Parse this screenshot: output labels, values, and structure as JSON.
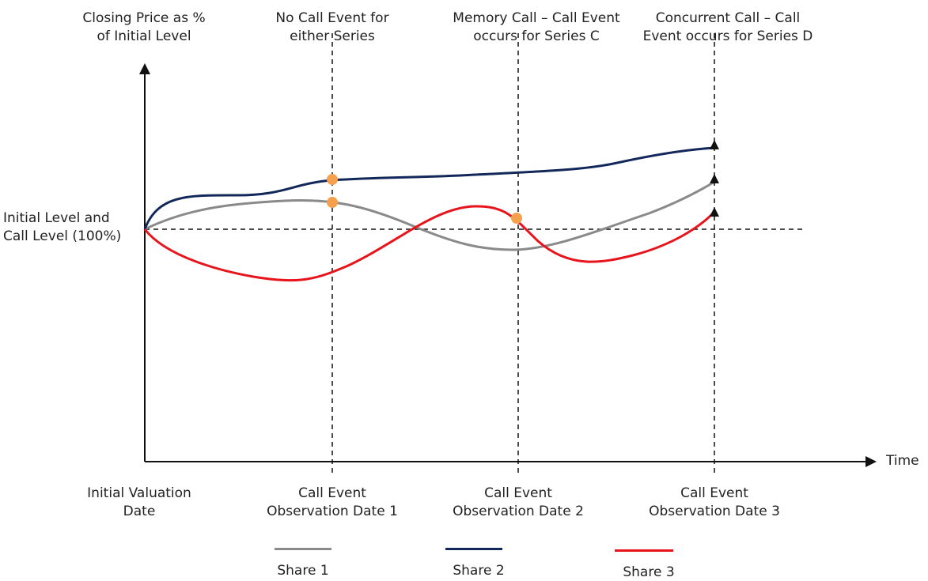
{
  "colors": {
    "share1": "#8a8a8a",
    "share2": "#13285a",
    "share3": "#e8141c",
    "observation_dot": "#f5a04d",
    "axis": "#111111"
  },
  "labels": {
    "y_axis_title": [
      "Closing Price as %",
      "of Initial Level"
    ],
    "call_level": [
      "Initial Level and",
      "Call Level (100%)"
    ],
    "time": "Time",
    "initial_date": [
      "Initial Valuation",
      "Date"
    ],
    "obs1": [
      "Call Event",
      "Observation Date 1"
    ],
    "obs2": [
      "Call Event",
      "Observation Date 2"
    ],
    "obs3": [
      "Call Event",
      "Observation Date 3"
    ],
    "annot1": [
      "No Call Event for",
      "either Series"
    ],
    "annot2": [
      "Memory Call – Call Event",
      "occurs for Series C"
    ],
    "annot3": [
      "Concurrent Call – Call",
      "Event occurs for Series D"
    ]
  },
  "chart_data": {
    "type": "line",
    "ylabel": "Closing Price as % of Initial Level",
    "xlabel": "Time",
    "grid": false,
    "reference_line": {
      "label": "Initial Level and Call Level (100%)",
      "value": 100
    },
    "x_markers": [
      "Initial Valuation Date",
      "Call Event Observation Date 1",
      "Call Event Observation Date 2",
      "Call Event Observation Date 3"
    ],
    "series": [
      {
        "name": "Share 1",
        "values": [
          100,
          111,
          93,
          119
        ]
      },
      {
        "name": "Share 2",
        "values": [
          100,
          120,
          124,
          133
        ]
      },
      {
        "name": "Share 3",
        "values": [
          100,
          87,
          104,
          106
        ]
      }
    ],
    "annotations": [
      "No Call Event for either Series",
      "Memory Call – Call Event occurs for Series C",
      "Concurrent Call – Call Event occurs for Series D"
    ]
  },
  "legend": [
    "Share 1",
    "Share 2",
    "Share 3"
  ]
}
